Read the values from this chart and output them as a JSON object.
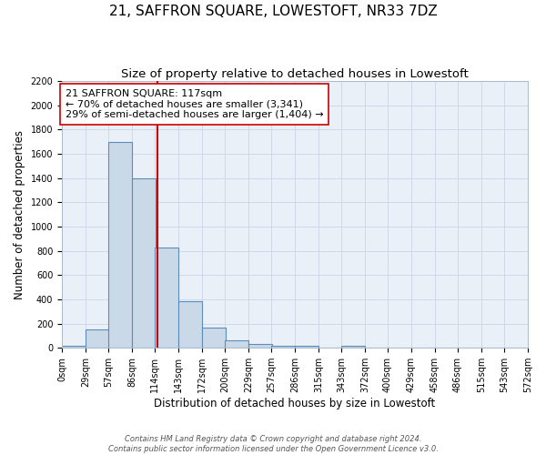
{
  "title": "21, SAFFRON SQUARE, LOWESTOFT, NR33 7DZ",
  "subtitle": "Size of property relative to detached houses in Lowestoft",
  "xlabel": "Distribution of detached houses by size in Lowestoft",
  "ylabel": "Number of detached properties",
  "bar_left_edges": [
    0,
    29,
    57,
    86,
    114,
    143,
    172,
    200,
    229,
    257,
    286,
    315,
    343,
    372,
    400,
    429,
    458,
    486,
    515,
    543
  ],
  "bar_heights": [
    20,
    155,
    1700,
    1400,
    825,
    385,
    165,
    65,
    30,
    20,
    20,
    0,
    20,
    0,
    0,
    0,
    0,
    0,
    0,
    0
  ],
  "bin_width": 29,
  "bar_color": "#c9d9e8",
  "bar_edge_color": "#5b8db8",
  "vline_x": 117,
  "vline_color": "#cc0000",
  "annotation_line1": "21 SAFFRON SQUARE: 117sqm",
  "annotation_line2": "← 70% of detached houses are smaller (3,341)",
  "annotation_line3": "29% of semi-detached houses are larger (1,404) →",
  "ylim": [
    0,
    2200
  ],
  "xlim": [
    0,
    572
  ],
  "xtick_labels": [
    "0sqm",
    "29sqm",
    "57sqm",
    "86sqm",
    "114sqm",
    "143sqm",
    "172sqm",
    "200sqm",
    "229sqm",
    "257sqm",
    "286sqm",
    "315sqm",
    "343sqm",
    "372sqm",
    "400sqm",
    "429sqm",
    "458sqm",
    "486sqm",
    "515sqm",
    "543sqm",
    "572sqm"
  ],
  "xtick_positions": [
    0,
    29,
    57,
    86,
    114,
    143,
    172,
    200,
    229,
    257,
    286,
    315,
    343,
    372,
    400,
    429,
    458,
    486,
    515,
    543,
    572
  ],
  "ytick_positions": [
    0,
    200,
    400,
    600,
    800,
    1000,
    1200,
    1400,
    1600,
    1800,
    2000,
    2200
  ],
  "grid_color": "#d0d8e8",
  "bg_color": "#eaf0f8",
  "footer_line1": "Contains HM Land Registry data © Crown copyright and database right 2024.",
  "footer_line2": "Contains public sector information licensed under the Open Government Licence v3.0.",
  "title_fontsize": 11,
  "subtitle_fontsize": 9.5,
  "axis_label_fontsize": 8.5,
  "tick_fontsize": 7,
  "annotation_fontsize": 8
}
